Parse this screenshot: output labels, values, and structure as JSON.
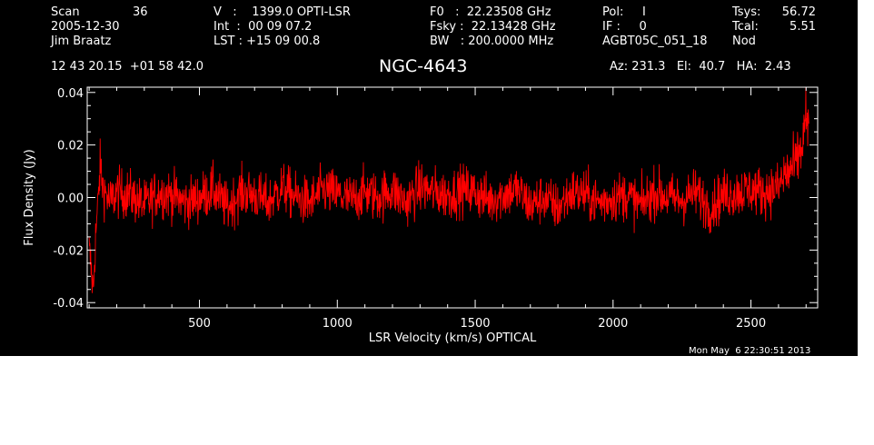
{
  "header": {
    "col1": {
      "scan_label": "Scan",
      "scan_value": "36",
      "date": "2005-12-30",
      "observer": "Jim Braatz"
    },
    "col2": {
      "v_line": "V   :    1399.0 OPTI-LSR",
      "int_line": "Int  :  00 09 07.2",
      "lst_line": "LST : +15 09 00.8"
    },
    "col3": {
      "f0_line": "F0   :  22.23508 GHz",
      "fsky_line": "Fsky :  22.13428 GHz",
      "bw_line": "BW   : 200.0000 MHz"
    },
    "col4": {
      "pol_line": "Pol:     I",
      "if_line": "IF :     0",
      "project": "AGBT05C_051_18"
    },
    "col5": {
      "tsys_label": "Tsys:",
      "tsys_value": "56.72",
      "tcal_label": "Tcal:",
      "tcal_value": "5.51",
      "mode": "Nod"
    },
    "coords": "12 43 20.15  +01 58 42.0",
    "pointing": "Az: 231.3   El:  40.7   HA:  2.43"
  },
  "timestamp": "Mon May  6 22:30:51 2013",
  "colors": {
    "background": "#000000",
    "trace": "#ff0000",
    "axes": "#ffffff"
  },
  "chart_data": {
    "type": "line",
    "title": "NGC-4643",
    "xlabel": "LSR Velocity (km/s) OPTICAL",
    "ylabel": "Flux Density (Jy)",
    "xlim": [
      93,
      2742
    ],
    "ylim": [
      -0.042,
      0.042
    ],
    "xticks": [
      500,
      1000,
      1500,
      2000,
      2500
    ],
    "xtick_labels": [
      "500",
      "1000",
      "1500",
      "2000",
      "2500"
    ],
    "yticks": [
      -0.04,
      -0.02,
      0.0,
      0.02,
      0.04
    ],
    "ytick_labels": [
      "-0.04",
      "-0.02",
      "0.00",
      "0.02",
      "0.04"
    ],
    "grid": false,
    "series": [
      {
        "x": [
          100,
          110,
          115,
          120,
          125,
          130,
          140,
          150,
          175,
          200,
          250,
          300,
          350,
          400,
          450,
          500,
          550,
          600,
          650,
          700,
          750,
          800,
          850,
          900,
          950,
          1000,
          1050,
          1100,
          1150,
          1200,
          1250,
          1300,
          1350,
          1400,
          1450,
          1500,
          1550,
          1600,
          1650,
          1700,
          1750,
          1800,
          1850,
          1900,
          1950,
          2000,
          2050,
          2100,
          2150,
          2200,
          2250,
          2300,
          2350,
          2400,
          2450,
          2500,
          2550,
          2600,
          2620,
          2640,
          2660,
          2680,
          2690,
          2700,
          2705,
          2710
        ],
        "y": [
          -0.02,
          -0.03,
          -0.036,
          -0.022,
          -0.012,
          -0.006,
          0.012,
          0.004,
          -0.002,
          0.002,
          0.001,
          -0.003,
          0.002,
          0.001,
          -0.002,
          0.0,
          0.003,
          -0.004,
          0.002,
          0.001,
          -0.002,
          0.004,
          0.0,
          -0.002,
          0.003,
          0.001,
          -0.001,
          0.002,
          0.0,
          0.003,
          -0.002,
          0.004,
          0.002,
          0.001,
          0.003,
          0.002,
          -0.001,
          0.001,
          0.003,
          -0.003,
          0.0,
          -0.004,
          0.002,
          0.001,
          -0.002,
          0.0,
          0.001,
          -0.003,
          0.002,
          0.0,
          -0.001,
          0.002,
          -0.004,
          0.001,
          0.002,
          0.003,
          0.002,
          0.004,
          0.008,
          0.01,
          0.012,
          0.018,
          0.022,
          0.034,
          0.02,
          0.03
        ]
      }
    ],
    "noise_amplitude": 0.009
  }
}
